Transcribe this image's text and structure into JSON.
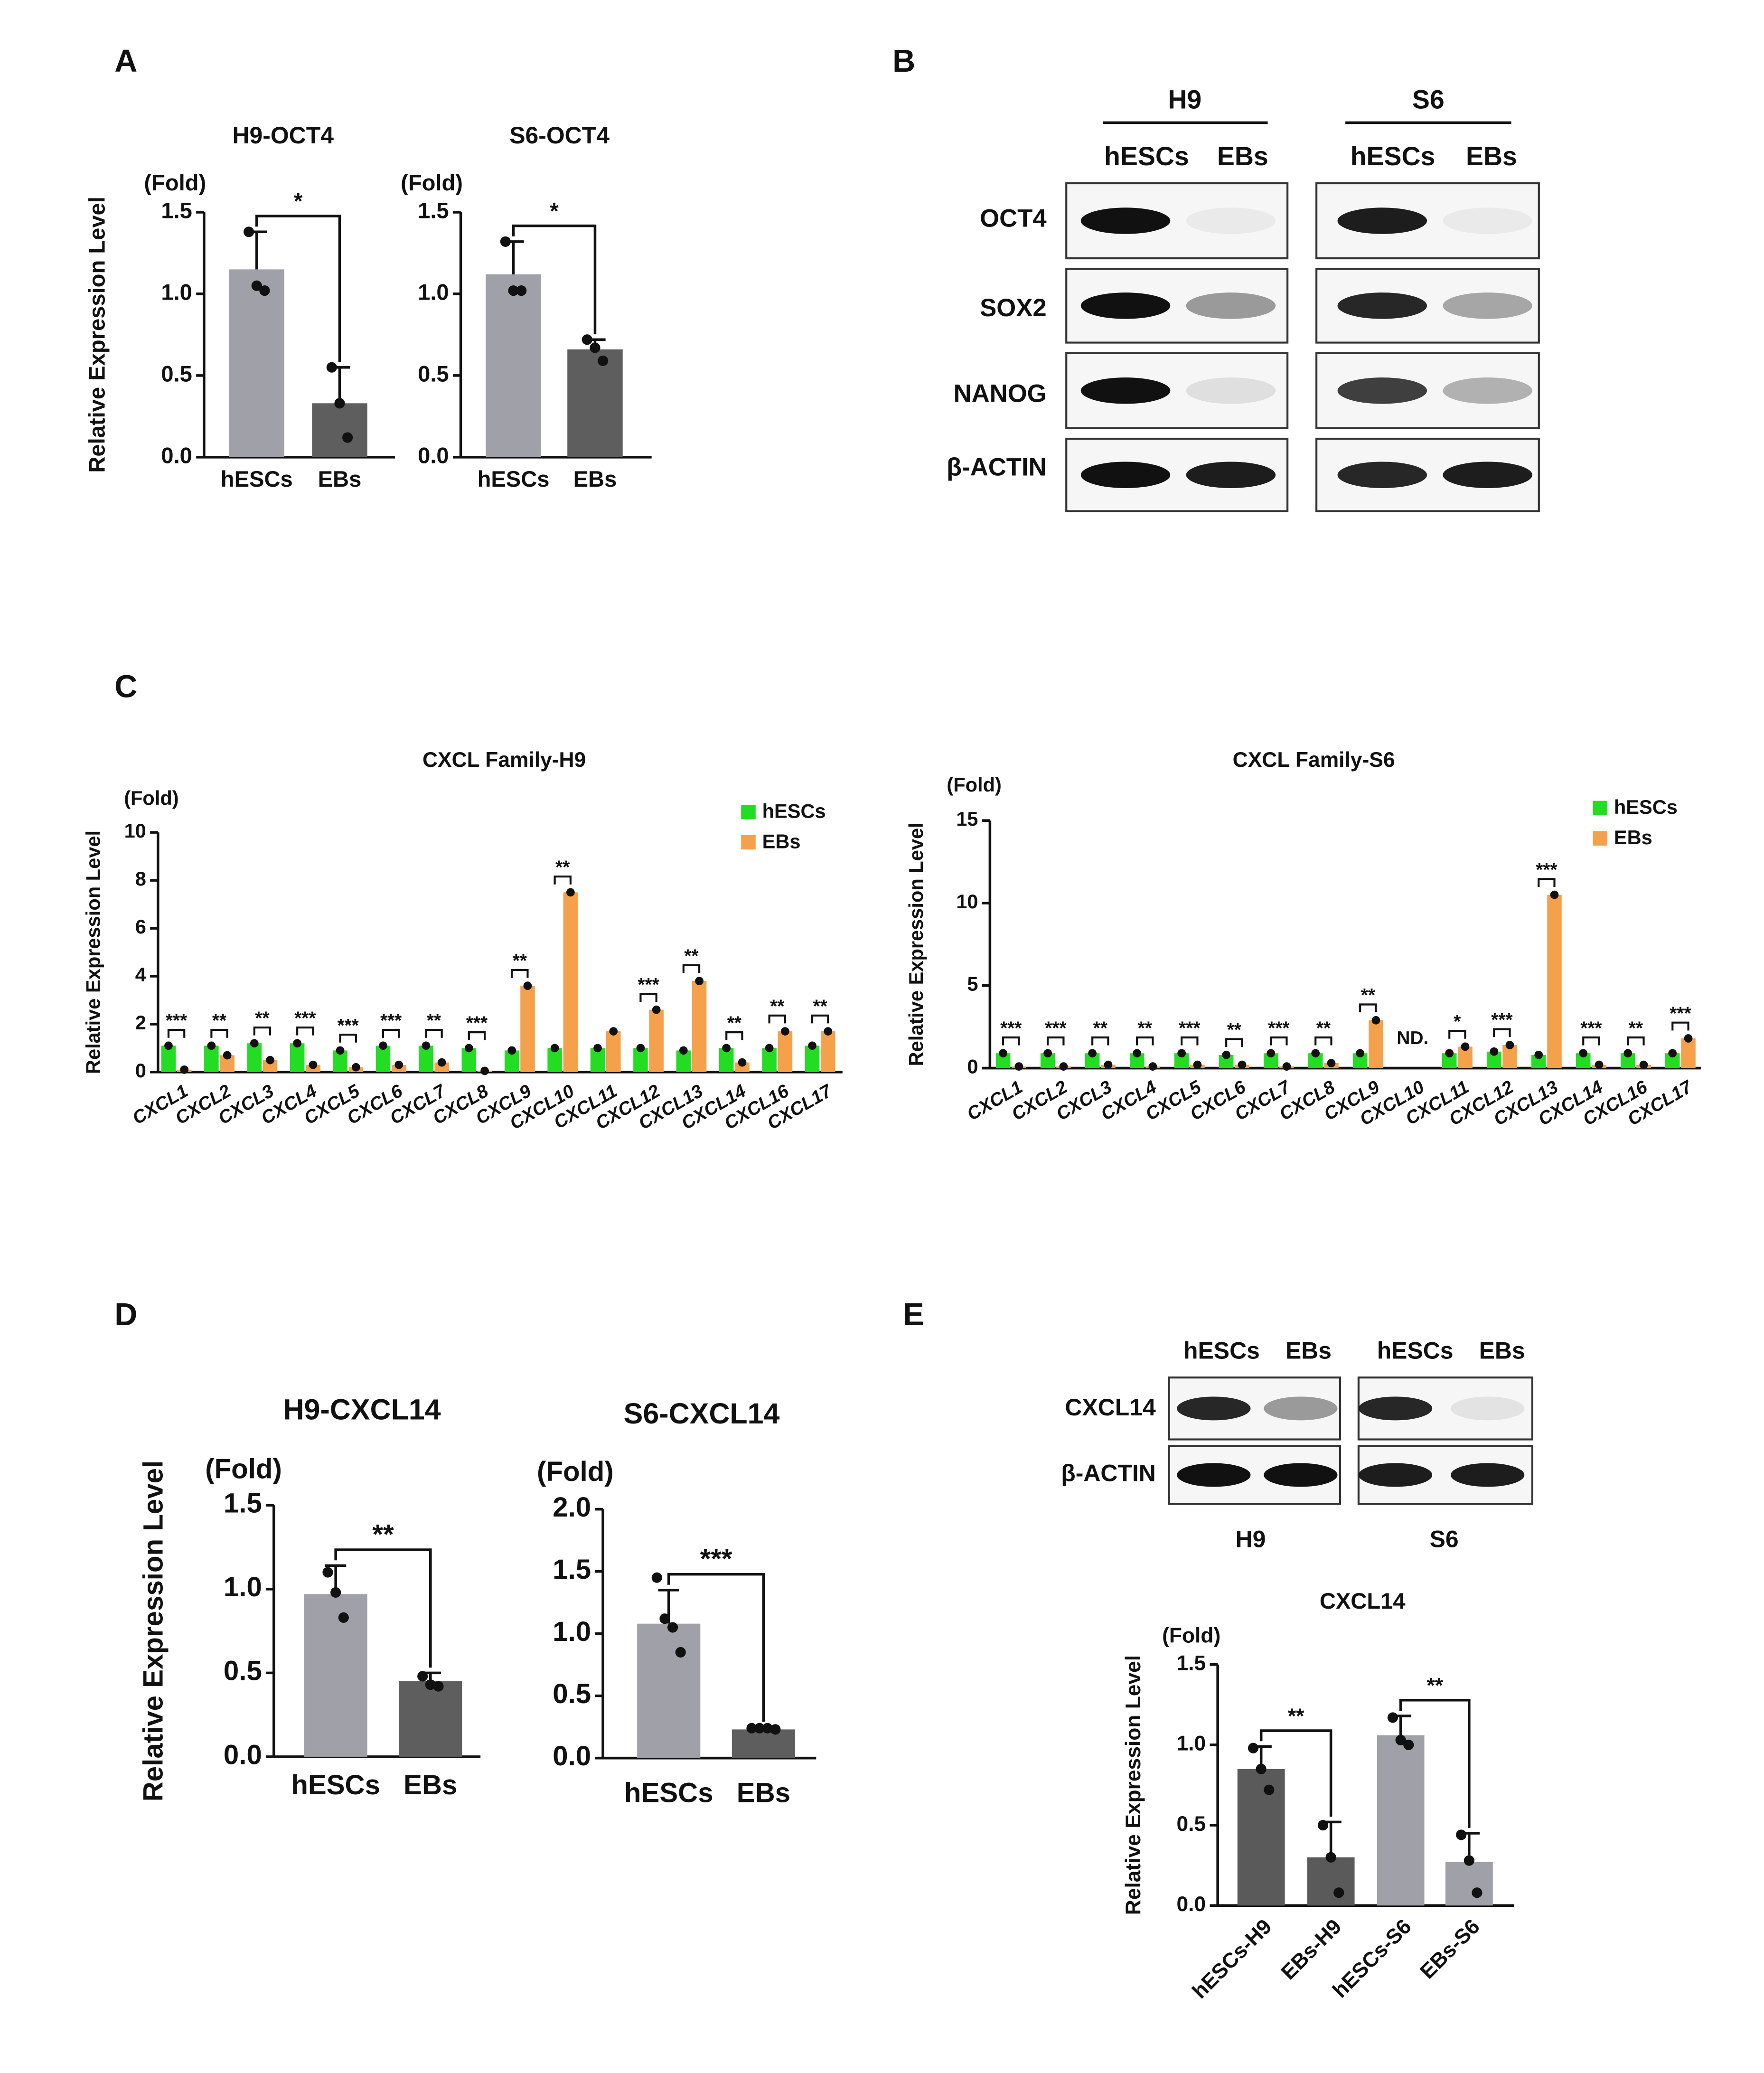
{
  "panel_labels": [
    "A",
    "B",
    "C",
    "D",
    "E"
  ],
  "blot_b": {
    "groups": [
      "H9",
      "S6"
    ],
    "lanes": [
      "hESCs",
      "EBs",
      "hESCs",
      "EBs"
    ],
    "rows": [
      "OCT4",
      "SOX2",
      "NANOG",
      "β-ACTIN"
    ]
  },
  "blot_e": {
    "lanes": [
      "hESCs",
      "EBs",
      "hESCs",
      "EBs"
    ],
    "rows": [
      "CXCL14",
      "β-ACTIN"
    ],
    "groups": [
      "H9",
      "S6"
    ]
  },
  "chart_data": [
    {
      "type": "bar",
      "title": "H9-OCT4",
      "y_label": "Relative Expression Level",
      "y_unit": "(Fold)",
      "categories": [
        "hESCs",
        "EBs"
      ],
      "values": [
        1.15,
        0.33
      ],
      "errors": [
        0.23,
        0.22
      ],
      "points": [
        [
          1.38,
          1.05,
          1.02
        ],
        [
          0.55,
          0.33,
          0.12
        ]
      ],
      "colors": [
        "#a0a0a8",
        "#5e5e5e"
      ],
      "ylim": [
        0,
        1.5
      ],
      "yticks": [
        {
          "value": 0,
          "label": "0.0"
        },
        0.5,
        {
          "value": 1,
          "label": "1.0"
        },
        1.5
      ],
      "significance": [
        {
          "from": 0,
          "to": 1,
          "label": "*"
        }
      ]
    },
    {
      "type": "bar",
      "title": "S6-OCT4",
      "y_unit": "(Fold)",
      "categories": [
        "hESCs",
        "EBs"
      ],
      "values": [
        1.12,
        0.66
      ],
      "errors": [
        0.2,
        0.06
      ],
      "points": [
        [
          1.32,
          1.02,
          1.02
        ],
        [
          0.72,
          0.67,
          0.59
        ]
      ],
      "colors": [
        "#a0a0a8",
        "#5e5e5e"
      ],
      "ylim": [
        0,
        1.5
      ],
      "yticks": [
        {
          "value": 0,
          "label": "0.0"
        },
        0.5,
        {
          "value": 1,
          "label": "1.0"
        },
        1.5
      ],
      "significance": [
        {
          "from": 0,
          "to": 1,
          "label": "*"
        }
      ]
    },
    {
      "type": "grouped_bar",
      "title": "CXCL Family-H9",
      "y_label": "Relative Expression Level",
      "y_unit": "(Fold)",
      "categories": [
        "CXCL1",
        "CXCL2",
        "CXCL3",
        "CXCL4",
        "CXCL5",
        "CXCL6",
        "CXCL7",
        "CXCL8",
        "CXCL9",
        "CXCL10",
        "CXCL11",
        "CXCL12",
        "CXCL13",
        "CXCL14",
        "CXCL16",
        "CXCL17"
      ],
      "series": [
        {
          "name": "hESCs",
          "color": "#22dd22",
          "values": [
            1.1,
            1.1,
            1.2,
            1.2,
            0.9,
            1.1,
            1.1,
            1.0,
            0.9,
            1.0,
            1.0,
            1.0,
            0.9,
            1.0,
            1.0,
            1.1
          ]
        },
        {
          "name": "EBs",
          "color": "#f5a04a",
          "values": [
            0.1,
            0.7,
            0.5,
            0.3,
            0.2,
            0.3,
            0.4,
            0.05,
            3.6,
            7.5,
            1.7,
            2.6,
            3.8,
            0.4,
            1.7,
            1.7
          ]
        }
      ],
      "ylim": [
        0,
        10
      ],
      "yticks": [
        0,
        2,
        4,
        6,
        8,
        10
      ],
      "legend": "upper right",
      "significance": [
        "***",
        "**",
        "**",
        "***",
        "***",
        "***",
        "**",
        "***",
        "**",
        "**",
        null,
        "***",
        "**",
        "**",
        "**",
        "**"
      ]
    },
    {
      "type": "grouped_bar",
      "title": "CXCL Family-S6",
      "y_label": "Relative Expression Level",
      "y_unit": "(Fold)",
      "categories": [
        "CXCL1",
        "CXCL2",
        "CXCL3",
        "CXCL4",
        "CXCL5",
        "CXCL6",
        "CXCL7",
        "CXCL8",
        "CXCL9",
        "CXCL10",
        "CXCL11",
        "CXCL12",
        "CXCL13",
        "CXCL14",
        "CXCL16",
        "CXCL17"
      ],
      "series": [
        {
          "name": "hESCs",
          "color": "#22dd22",
          "values": [
            0.9,
            0.9,
            0.9,
            0.9,
            0.9,
            0.8,
            0.9,
            0.9,
            0.9,
            null,
            0.9,
            1.0,
            0.8,
            0.9,
            0.9,
            0.9
          ]
        },
        {
          "name": "EBs",
          "color": "#f5a04a",
          "values": [
            0.1,
            0.1,
            0.2,
            0.1,
            0.2,
            0.2,
            0.1,
            0.3,
            2.9,
            null,
            1.3,
            1.4,
            10.5,
            0.2,
            0.2,
            1.8
          ]
        }
      ],
      "ylim": [
        0,
        15
      ],
      "yticks": [
        0,
        5,
        10,
        15
      ],
      "legend": "upper right",
      "significance": [
        "***",
        "***",
        "**",
        "**",
        "***",
        "**",
        "***",
        "**",
        "**",
        "ND.",
        "*",
        "***",
        "***",
        "***",
        "**",
        "***"
      ]
    },
    {
      "type": "bar",
      "title": "H9-CXCL14",
      "y_label": "Relative Expression Level",
      "y_unit": "(Fold)",
      "categories": [
        "hESCs",
        "EBs"
      ],
      "values": [
        0.97,
        0.45
      ],
      "errors": [
        0.17,
        0.05
      ],
      "points": [
        [
          1.1,
          0.98,
          0.83
        ],
        [
          0.48,
          0.43,
          0.42
        ]
      ],
      "colors": [
        "#a0a0a8",
        "#5e5e5e"
      ],
      "ylim": [
        0,
        1.5
      ],
      "yticks": [
        {
          "value": 0,
          "label": "0.0"
        },
        0.5,
        {
          "value": 1,
          "label": "1.0"
        },
        1.5
      ],
      "significance": [
        {
          "from": 0,
          "to": 1,
          "label": "**"
        }
      ]
    },
    {
      "type": "bar",
      "title": "S6-CXCL14",
      "y_unit": "(Fold)",
      "categories": [
        "hESCs",
        "EBs"
      ],
      "values": [
        1.08,
        0.23
      ],
      "errors": [
        0.27,
        0.02
      ],
      "points": [
        [
          1.45,
          1.12,
          1.05,
          0.85
        ],
        [
          0.24,
          0.24,
          0.24,
          0.23
        ]
      ],
      "colors": [
        "#a0a0a8",
        "#5e5e5e"
      ],
      "ylim": [
        0,
        2
      ],
      "yticks": [
        {
          "value": 0,
          "label": "0.0"
        },
        0.5,
        {
          "value": 1,
          "label": "1.0"
        },
        1.5,
        {
          "value": 2,
          "label": "2.0"
        }
      ],
      "significance": [
        {
          "from": 0,
          "to": 1,
          "label": "***"
        }
      ]
    },
    {
      "type": "bar",
      "title": "CXCL14",
      "y_label": "Relative Expression Level",
      "y_unit": "(Fold)",
      "categories": [
        "hESCs-H9",
        "EBs-H9",
        "hESCs-S6",
        "EBs-S6"
      ],
      "values": [
        0.85,
        0.3,
        1.06,
        0.27
      ],
      "errors": [
        0.14,
        0.22,
        0.12,
        0.18
      ],
      "points": [
        [
          0.98,
          0.85,
          0.72
        ],
        [
          0.5,
          0.3,
          0.08
        ],
        [
          1.17,
          1.03,
          1.0
        ],
        [
          0.44,
          0.28,
          0.08
        ]
      ],
      "colors": [
        "#5a5a5a",
        "#5a5a5a",
        "#a0a0a8",
        "#a0a0a8"
      ],
      "ylim": [
        0,
        1.5
      ],
      "yticks": [
        {
          "value": 0,
          "label": "0.0"
        },
        0.5,
        {
          "value": 1,
          "label": "1.0"
        },
        1.5
      ],
      "significance": [
        {
          "from": 0,
          "to": 1,
          "label": "**"
        },
        {
          "from": 2,
          "to": 3,
          "label": "**"
        }
      ]
    }
  ]
}
